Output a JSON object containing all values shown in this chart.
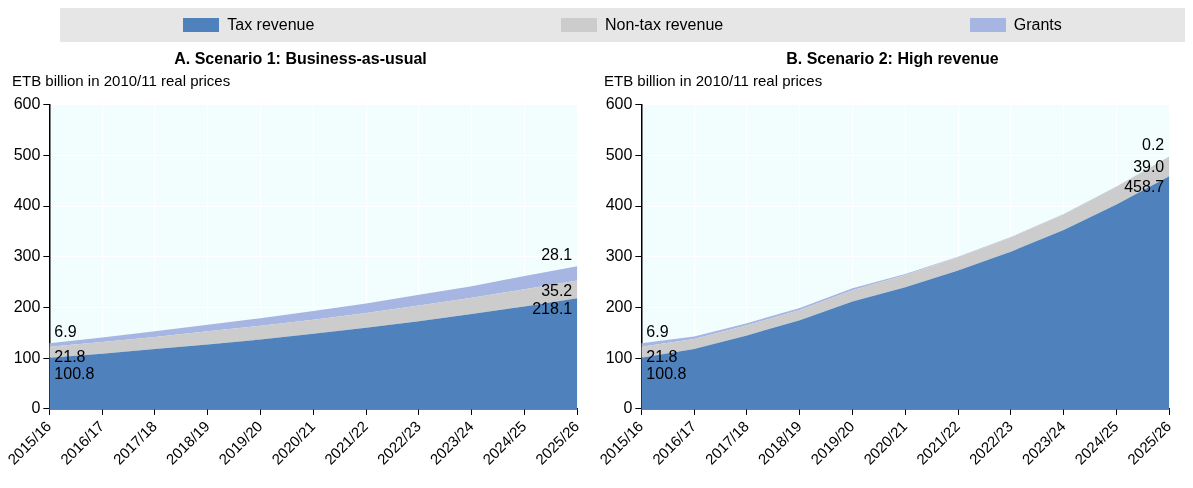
{
  "chart_data": [
    {
      "type": "area",
      "title": "A. Scenario 1: Business-as-usual",
      "ylabel": "ETB billion in 2010/11 real prices",
      "stacked": true,
      "legend": "top",
      "grid": true,
      "marker": "none",
      "categories": [
        "2015/16",
        "2016/17",
        "2017/18",
        "2018/19",
        "2019/20",
        "2020/21",
        "2021/22",
        "2022/23",
        "2023/24",
        "2024/25",
        "2025/26"
      ],
      "ylim": [
        0,
        600
      ],
      "yticks": [
        0,
        100,
        200,
        300,
        400,
        500,
        600
      ],
      "series": [
        {
          "name": "Tax revenue",
          "color": "#4f81bd",
          "values": [
            100.8,
            109,
            118,
            127,
            137,
            148,
            160,
            173,
            187,
            202,
            218.1
          ],
          "value_labels": [
            "100.8",
            null,
            null,
            null,
            null,
            null,
            null,
            null,
            null,
            null,
            "218.1"
          ]
        },
        {
          "name": "Non-tax revenue",
          "color": "#cccccc",
          "values": [
            21.8,
            23,
            24,
            26,
            27,
            28,
            29,
            31,
            32,
            34,
            35.2
          ],
          "value_labels": [
            "21.8",
            null,
            null,
            null,
            null,
            null,
            null,
            null,
            null,
            null,
            "35.2"
          ]
        },
        {
          "name": "Grants",
          "color": "#a7b5e3",
          "values": [
            6.9,
            9,
            11,
            13,
            15,
            17,
            19,
            21,
            23,
            26,
            28.1
          ],
          "value_labels": [
            "6.9",
            null,
            null,
            null,
            null,
            null,
            null,
            null,
            null,
            null,
            "28.1"
          ]
        }
      ]
    },
    {
      "type": "area",
      "title": "B. Scenario 2: High revenue",
      "ylabel": "ETB billion in 2010/11 real prices",
      "stacked": true,
      "grid": true,
      "marker": "none",
      "categories": [
        "2015/16",
        "2016/17",
        "2017/18",
        "2018/19",
        "2019/20",
        "2020/21",
        "2021/22",
        "2022/23",
        "2023/24",
        "2024/25",
        "2025/26"
      ],
      "ylim": [
        0,
        600
      ],
      "yticks": [
        0,
        100,
        200,
        300,
        400,
        500,
        600
      ],
      "series": [
        {
          "color": "#4f81bd",
          "values": [
            100.8,
            118,
            145,
            175,
            212,
            240,
            273,
            310,
            353,
            403,
            458.7
          ],
          "value_labels": [
            "100.8",
            null,
            null,
            null,
            null,
            null,
            null,
            null,
            null,
            null,
            "458.7"
          ]
        },
        {
          "color": "#cccccc",
          "values": [
            21.8,
            20,
            20,
            20,
            22,
            24,
            26,
            28,
            31,
            35,
            39.0
          ],
          "value_labels": [
            "21.8",
            null,
            null,
            null,
            null,
            null,
            null,
            null,
            null,
            null,
            "39.0"
          ]
        },
        {
          "color": "#a7b5e3",
          "values": [
            6.9,
            5,
            4,
            4,
            4,
            2,
            1,
            1,
            0.5,
            0.3,
            0.2
          ],
          "value_labels": [
            "6.9",
            null,
            null,
            null,
            null,
            null,
            null,
            null,
            null,
            null,
            "0.2"
          ]
        }
      ]
    }
  ]
}
